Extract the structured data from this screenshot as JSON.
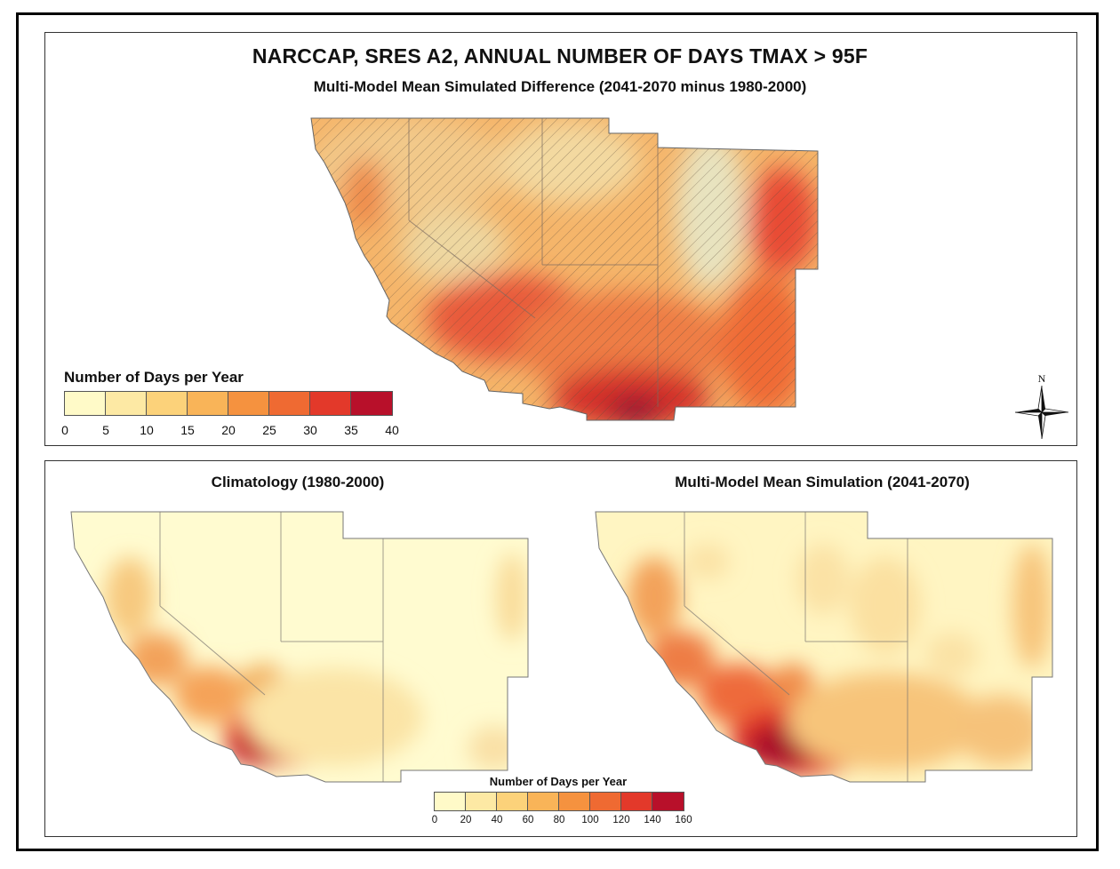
{
  "title": "NARCCAP, SRES A2, ANNUAL NUMBER OF DAYS TMAX > 95F",
  "subtitle": "Multi-Model Mean Simulated Difference (2041-2070 minus 1980-2000)",
  "top_legend": {
    "title": "Number of Days per Year",
    "ticks": [
      "0",
      "5",
      "10",
      "15",
      "20",
      "25",
      "30",
      "35",
      "40"
    ],
    "colors": [
      "#fffac8",
      "#fde9a4",
      "#fcd27a",
      "#f9b458",
      "#f5923f",
      "#ef6a32",
      "#e3392a",
      "#b8102a"
    ]
  },
  "compass": {
    "label": "N"
  },
  "bottom_left": {
    "title": "Climatology (1980-2000)"
  },
  "bottom_right": {
    "title": "Multi-Model Mean Simulation (2041-2070)"
  },
  "bottom_legend": {
    "title": "Number of Days per Year",
    "ticks": [
      "0",
      "20",
      "40",
      "60",
      "80",
      "100",
      "120",
      "140",
      "160"
    ],
    "colors": [
      "#fffac8",
      "#fde9a4",
      "#fcd27a",
      "#f9b458",
      "#f5923f",
      "#ef6a32",
      "#e3392a",
      "#b8102a"
    ]
  }
}
